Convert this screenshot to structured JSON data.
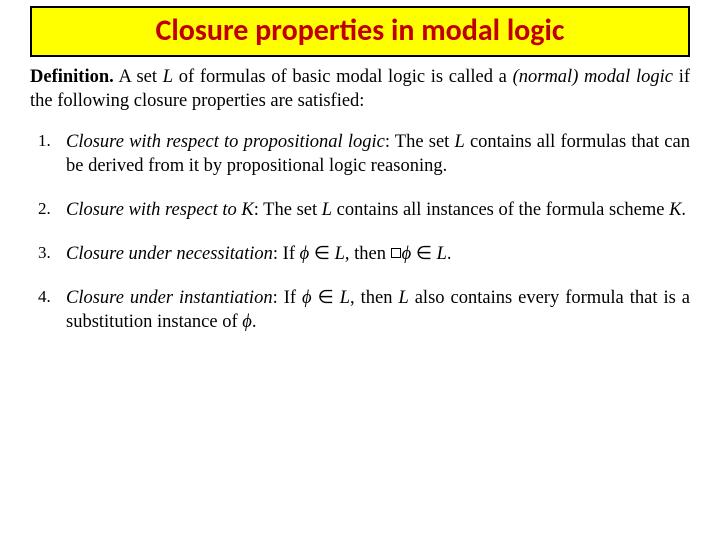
{
  "title": "Closure properties in modal logic",
  "colors": {
    "title_bg": "#ffff00",
    "title_border": "#000000",
    "title_text": "#c00000",
    "body_text": "#000000",
    "page_bg": "#ffffff"
  },
  "typography": {
    "title_font": "Calibri/Segoe UI, sans-serif",
    "title_size_pt": 22,
    "title_weight": 700,
    "body_font": "Georgia/Times, serif",
    "body_size_pt": 14,
    "line_height": 1.32
  },
  "definition": {
    "label": "Definition.",
    "pre": "  A set ",
    "L": "L",
    "mid1": " of formulas of basic modal logic is called a ",
    "ital": "(normal) modal logic",
    "post": " if the following closure properties are satisfied:"
  },
  "items": [
    {
      "n": "1.",
      "subtitle": "Closure with respect to propositional logic",
      "after": ": The set ",
      "body2": " contains all formulas that can be derived from it by propositional logic reasoning."
    },
    {
      "n": "2.",
      "subtitle": "Closure with respect to ",
      "K_in_subtitle": "K",
      "after": ": The set ",
      "body2": " contains all instances of the formula scheme ",
      "K_end": "K",
      "period": "."
    },
    {
      "n": "3.",
      "subtitle": "Closure under necessitation",
      "after": ": If ",
      "phi1": "ϕ",
      "in": " ∈ ",
      "L1": "L",
      "then": ", then ",
      "phi2": "ϕ",
      "in2": " ∈ ",
      "L2": "L",
      "period": "."
    },
    {
      "n": "4.",
      "subtitle": "Closure under instantiation",
      "after": ": If ",
      "phi1": "ϕ",
      "in": " ∈ ",
      "L1": "L",
      "then": ", then ",
      "body2": " also contains every formula that is a substitution instance of ",
      "phi2": "ϕ",
      "period": "."
    }
  ]
}
